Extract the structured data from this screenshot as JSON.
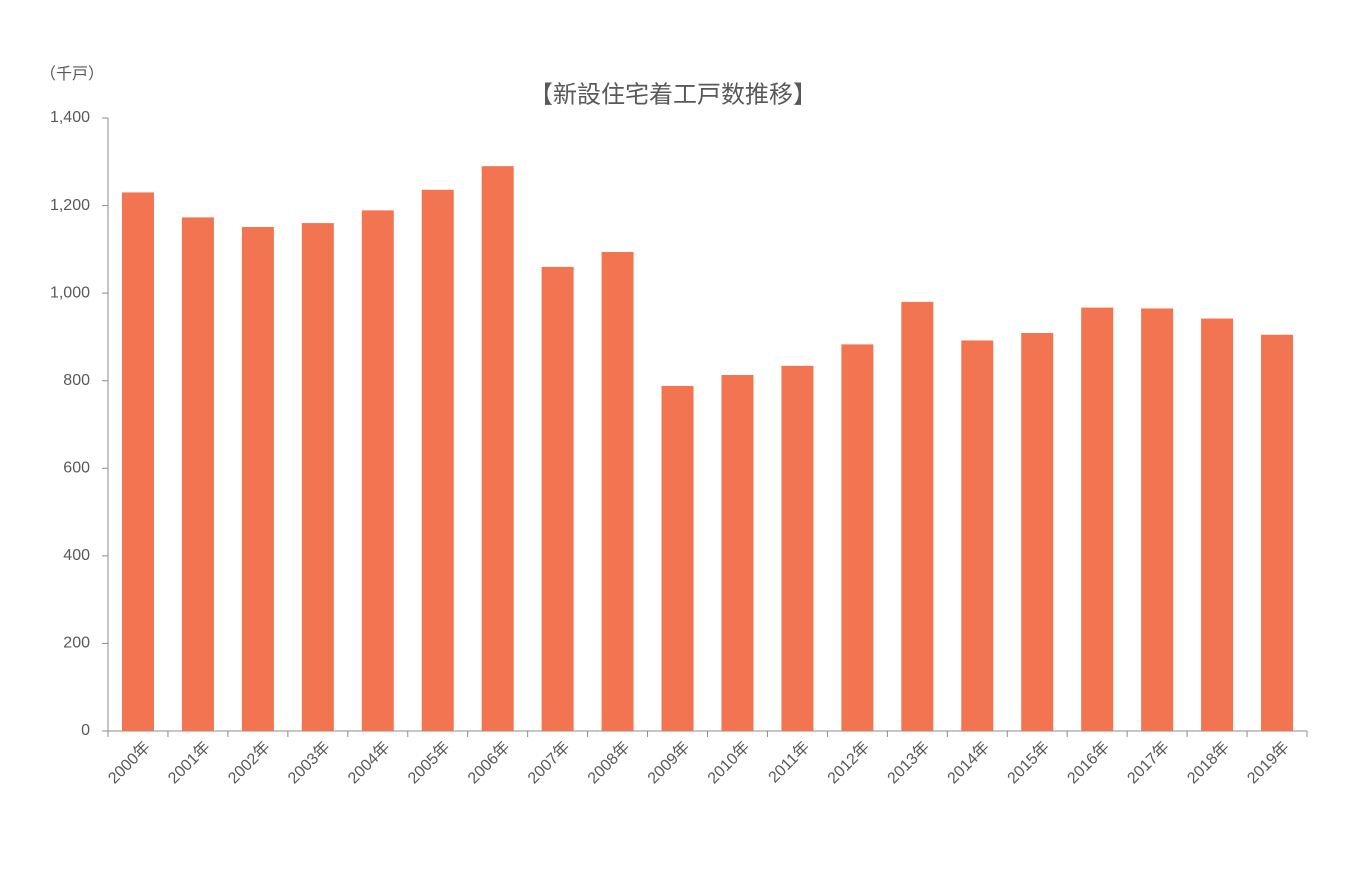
{
  "chart_data": {
    "type": "bar",
    "title": "【新設住宅着工戸数推移】",
    "y_unit_label": "（千戸）",
    "categories": [
      "2000年",
      "2001年",
      "2002年",
      "2003年",
      "2004年",
      "2005年",
      "2006年",
      "2007年",
      "2008年",
      "2009年",
      "2010年",
      "2011年",
      "2012年",
      "2013年",
      "2014年",
      "2015年",
      "2016年",
      "2017年",
      "2018年",
      "2019年"
    ],
    "values": [
      1230,
      1173,
      1151,
      1160,
      1189,
      1236,
      1290,
      1060,
      1094,
      788,
      813,
      834,
      883,
      980,
      892,
      909,
      967,
      965,
      942,
      905
    ],
    "color": "#f27451",
    "ylim": [
      0,
      1400
    ],
    "yticks": [
      0,
      200,
      400,
      600,
      800,
      {
        "value": 1000,
        "label": "1,000"
      },
      {
        "value": 1200,
        "label": "1,200"
      },
      {
        "value": 1400,
        "label": "1,400"
      }
    ],
    "grid": false
  }
}
